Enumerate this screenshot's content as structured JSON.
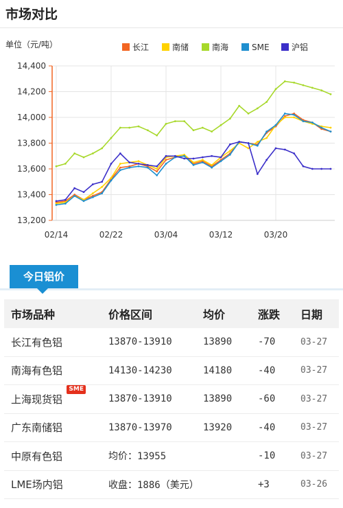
{
  "page": {
    "title": "市场对比",
    "tab_label": "今日铝价"
  },
  "chart_data": {
    "type": "line",
    "title": "",
    "ylabel": "单位（元/吨）",
    "xlabel": "",
    "ylim": [
      13200,
      14400
    ],
    "yticks": [
      13200,
      13400,
      13600,
      13800,
      14000,
      14200,
      14400
    ],
    "ytick_labels": [
      "13,200",
      "13,400",
      "13,600",
      "13,800",
      "14,000",
      "14,200",
      "14,400"
    ],
    "x_tick_labels": [
      "02/14",
      "02/22",
      "03/04",
      "03/12",
      "03/20"
    ],
    "x_tick_index": [
      0,
      6,
      12,
      18,
      24
    ],
    "x_count": 31,
    "legend_position": "top",
    "grid": true,
    "series": [
      {
        "name": "长江",
        "color": "#f26522",
        "values": [
          13340,
          13350,
          13400,
          13360,
          13390,
          13420,
          13520,
          13610,
          13620,
          13640,
          13620,
          13580,
          13670,
          13690,
          13700,
          13640,
          13660,
          13620,
          13670,
          13720,
          13810,
          13800,
          13790,
          13880,
          13930,
          14010,
          14030,
          13980,
          13960,
          13910,
          13890
        ]
      },
      {
        "name": "南储",
        "color": "#ffd200",
        "values": [
          13330,
          13340,
          13390,
          13360,
          13410,
          13460,
          13530,
          13640,
          13650,
          13660,
          13630,
          13600,
          13690,
          13700,
          13710,
          13650,
          13670,
          13630,
          13690,
          13740,
          13800,
          13760,
          13810,
          13840,
          13940,
          14000,
          14000,
          13970,
          13950,
          13930,
          13920
        ]
      },
      {
        "name": "南海",
        "color": "#a7d82a",
        "values": [
          13620,
          13640,
          13720,
          13690,
          13720,
          13760,
          13840,
          13920,
          13920,
          13930,
          13900,
          13860,
          13950,
          13970,
          13970,
          13900,
          13920,
          13890,
          13940,
          13990,
          14090,
          14030,
          14070,
          14120,
          14220,
          14280,
          14270,
          14250,
          14230,
          14210,
          14180
        ]
      },
      {
        "name": "SME",
        "color": "#1f8fcf",
        "values": [
          13320,
          13330,
          13390,
          13350,
          13380,
          13410,
          13510,
          13590,
          13610,
          13620,
          13610,
          13550,
          13640,
          13690,
          13700,
          13630,
          13650,
          13610,
          13660,
          13710,
          13810,
          13800,
          13780,
          13890,
          13940,
          14030,
          14020,
          13970,
          13960,
          13920,
          13890
        ]
      },
      {
        "name": "沪铝",
        "color": "#3b2fc9",
        "values": [
          13350,
          13360,
          13450,
          13420,
          13480,
          13500,
          13640,
          13720,
          13650,
          13640,
          13630,
          13620,
          13700,
          13700,
          13680,
          13680,
          13690,
          13700,
          13690,
          13790,
          13810,
          13800,
          13560,
          13670,
          13760,
          13750,
          13720,
          13620,
          13600,
          13600,
          13600
        ]
      }
    ]
  },
  "table": {
    "headers": [
      "市场品种",
      "价格区间",
      "均价",
      "涨跌",
      "日期"
    ],
    "rows": [
      {
        "market": "长江有色铝",
        "range": "13870-13910",
        "avg": "13890",
        "change": "-70",
        "date": "03-27",
        "badge": ""
      },
      {
        "market": "南海有色铝",
        "range": "14130-14230",
        "avg": "14180",
        "change": "-40",
        "date": "03-27",
        "badge": ""
      },
      {
        "market": "上海现货铝",
        "range": "13870-13910",
        "avg": "13890",
        "change": "-60",
        "date": "03-27",
        "badge": "SME"
      },
      {
        "market": "广东南储铝",
        "range": "13870-13970",
        "avg": "13920",
        "change": "-40",
        "date": "03-27",
        "badge": ""
      },
      {
        "market": "中原有色铝",
        "range": "均价：13955",
        "avg": "",
        "change": "-10",
        "date": "03-27",
        "badge": ""
      },
      {
        "market": "LME场内铝",
        "range": "收盘：1886（美元）",
        "avg": "",
        "change": "+3",
        "date": "03-26",
        "badge": ""
      }
    ]
  }
}
